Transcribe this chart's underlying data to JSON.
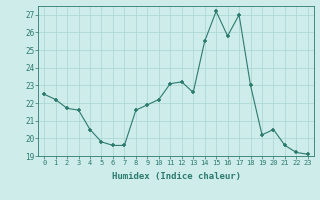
{
  "x": [
    0,
    1,
    2,
    3,
    4,
    5,
    6,
    7,
    8,
    9,
    10,
    11,
    12,
    13,
    14,
    15,
    16,
    17,
    18,
    19,
    20,
    21,
    22,
    23
  ],
  "y": [
    22.5,
    22.2,
    21.7,
    21.6,
    20.5,
    19.8,
    19.6,
    19.6,
    21.6,
    21.9,
    22.2,
    23.1,
    23.2,
    22.6,
    25.5,
    27.2,
    25.8,
    27.0,
    23.0,
    20.2,
    20.5,
    19.6,
    19.2,
    19.1
  ],
  "xlabel": "Humidex (Indice chaleur)",
  "ylim": [
    19,
    27.5
  ],
  "xlim": [
    -0.5,
    23.5
  ],
  "yticks": [
    19,
    20,
    21,
    22,
    23,
    24,
    25,
    26,
    27
  ],
  "xticks": [
    0,
    1,
    2,
    3,
    4,
    5,
    6,
    7,
    8,
    9,
    10,
    11,
    12,
    13,
    14,
    15,
    16,
    17,
    18,
    19,
    20,
    21,
    22,
    23
  ],
  "line_color": "#2d7a6e",
  "marker": "+",
  "marker_size": 3,
  "bg_color": "#cdecea",
  "grid_color": "#afd8d4",
  "tick_color": "#2d7a6e",
  "label_color": "#2d7a6e"
}
